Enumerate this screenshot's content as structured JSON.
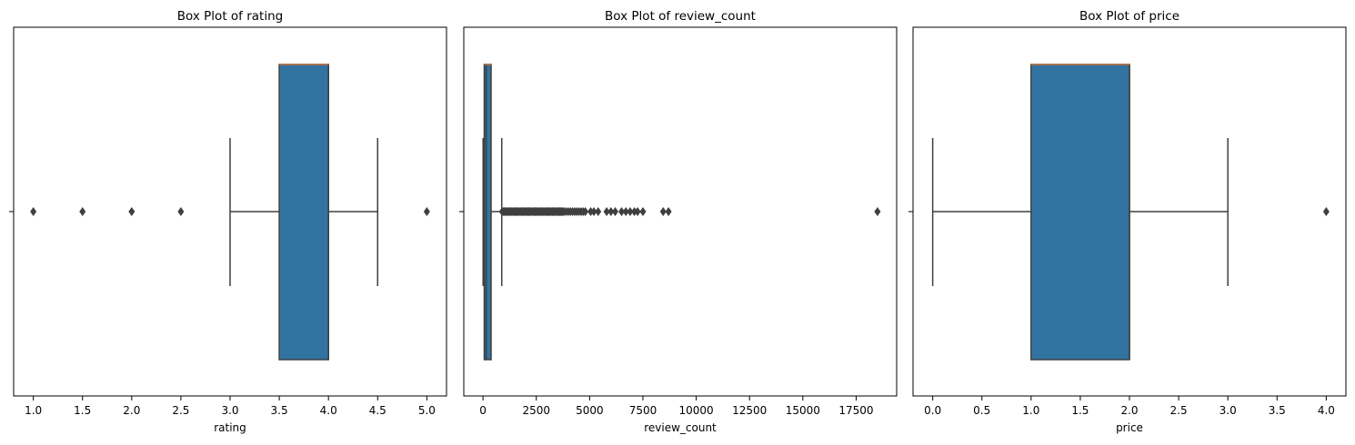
{
  "chart_data": [
    {
      "type": "box",
      "title": "Box Plot of rating",
      "xlabel": "rating",
      "ylabel": "",
      "xlim": [
        0.8,
        5.2
      ],
      "xticks": [
        1.0,
        1.5,
        2.0,
        2.5,
        3.0,
        3.5,
        4.0,
        4.5,
        5.0
      ],
      "xtick_labels": [
        "1.0",
        "1.5",
        "2.0",
        "2.5",
        "3.0",
        "3.5",
        "4.0",
        "4.5",
        "5.0"
      ],
      "box": {
        "whisker_low": 3.0,
        "q1": 3.5,
        "median": 4.0,
        "q3": 4.0,
        "whisker_high": 4.5
      },
      "outliers": [
        1.0,
        1.5,
        2.0,
        2.5,
        5.0
      ]
    },
    {
      "type": "box",
      "title": "Box Plot of review_count",
      "xlabel": "review_count",
      "ylabel": "",
      "xlim": [
        -900,
        19400
      ],
      "xticks": [
        0,
        2500,
        5000,
        7500,
        10000,
        12500,
        15000,
        17500
      ],
      "xtick_labels": [
        "0",
        "2500",
        "5000",
        "7500",
        "10000",
        "12500",
        "15000",
        "17500"
      ],
      "box": {
        "whisker_low": 5,
        "q1": 60,
        "median": 150,
        "q3": 380,
        "whisker_high": 880
      },
      "outliers": [
        900,
        950,
        1000,
        1050,
        1100,
        1150,
        1200,
        1250,
        1300,
        1350,
        1400,
        1450,
        1500,
        1550,
        1600,
        1650,
        1700,
        1750,
        1800,
        1850,
        1900,
        1950,
        2000,
        2050,
        2100,
        2150,
        2200,
        2250,
        2300,
        2350,
        2400,
        2450,
        2500,
        2550,
        2600,
        2650,
        2700,
        2750,
        2800,
        2850,
        2900,
        2950,
        3000,
        3050,
        3100,
        3150,
        3200,
        3250,
        3300,
        3350,
        3400,
        3450,
        3500,
        3550,
        3600,
        3650,
        3700,
        3750,
        3800,
        3900,
        4000,
        4100,
        4200,
        4300,
        4400,
        4500,
        4600,
        4700,
        4800,
        5050,
        5200,
        5400,
        5800,
        6000,
        6200,
        6500,
        6700,
        6900,
        7100,
        7250,
        7500,
        8450,
        8700,
        18500
      ]
    },
    {
      "type": "box",
      "title": "Box Plot of price",
      "xlabel": "price",
      "ylabel": "",
      "xlim": [
        -0.2,
        4.2
      ],
      "xticks": [
        0.0,
        0.5,
        1.0,
        1.5,
        2.0,
        2.5,
        3.0,
        3.5,
        4.0
      ],
      "xtick_labels": [
        "0.0",
        "0.5",
        "1.0",
        "1.5",
        "2.0",
        "2.5",
        "3.0",
        "3.5",
        "4.0"
      ],
      "box": {
        "whisker_low": 0.0,
        "q1": 1.0,
        "median": 2.0,
        "q3": 2.0,
        "whisker_high": 3.0
      },
      "outliers": [
        4.0
      ]
    }
  ],
  "colors": {
    "box_fill": "#3274a1",
    "line": "#3f3f3f",
    "median": "#c0703a",
    "outlier": "#3f3f3f",
    "axes": "#000000"
  }
}
